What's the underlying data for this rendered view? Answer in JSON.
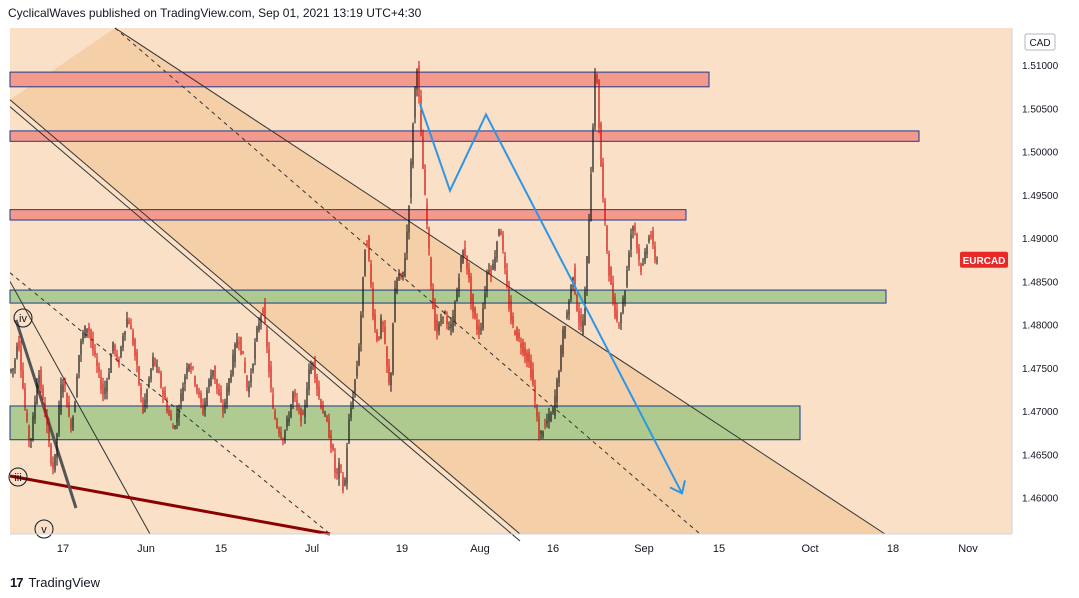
{
  "header": {
    "text": "CyclicalWaves published on TradingView.com, Sep 01, 2021 13:19 UTC+4:30"
  },
  "footer": {
    "logo": "17",
    "brand": "TradingView"
  },
  "colors": {
    "background": "#f9e0c6",
    "band": "#f5cfa8",
    "resistance_fill": "#f49a8c",
    "resistance_stroke": "#1b3a8c",
    "support_fill": "#a7c98c",
    "support_stroke": "#1b3a8c",
    "projection": "#2f95e6",
    "candle_down": "#d40000",
    "candle_up": "#111111",
    "trendline": "#555555",
    "dark_red_line": "#8b0000",
    "price_badge": "#e82929"
  },
  "chart_data": {
    "type": "candlestick",
    "symbol": "EURCAD",
    "currency": "CAD",
    "last_price_label": "EURCAD",
    "y_axis": {
      "ticks": [
        "1.51000",
        "1.50500",
        "1.50000",
        "1.49500",
        "1.49000",
        "1.48500",
        "1.48000",
        "1.47500",
        "1.47000",
        "1.46500",
        "1.46000"
      ],
      "range": [
        1.4558,
        1.5143
      ]
    },
    "x_axis": {
      "labels": [
        "17",
        "Jun",
        "15",
        "Jul",
        "19",
        "Aug",
        "16",
        "Sep",
        "15",
        "Oct",
        "18",
        "Nov"
      ]
    },
    "resistance_zones": [
      {
        "from": 1.5092,
        "to": 1.5075
      },
      {
        "from": 1.5024,
        "to": 1.5012
      },
      {
        "from": 1.4933,
        "to": 1.4921
      }
    ],
    "support_zones": [
      {
        "from": 1.484,
        "to": 1.4825
      },
      {
        "from": 1.4706,
        "to": 1.4667
      }
    ],
    "wave_labels": [
      "iv",
      "iii",
      "v"
    ],
    "price_path": [
      [
        0,
        1.4745
      ],
      [
        6,
        1.475
      ],
      [
        10,
        1.479
      ],
      [
        14,
        1.474
      ],
      [
        18,
        1.469
      ],
      [
        22,
        1.466
      ],
      [
        26,
        1.47
      ],
      [
        30,
        1.475
      ],
      [
        34,
        1.472
      ],
      [
        38,
        1.469
      ],
      [
        42,
        1.465
      ],
      [
        46,
        1.463
      ],
      [
        50,
        1.469
      ],
      [
        54,
        1.474
      ],
      [
        58,
        1.472
      ],
      [
        62,
        1.468
      ],
      [
        66,
        1.47
      ],
      [
        70,
        1.476
      ],
      [
        75,
        1.479
      ],
      [
        80,
        1.48
      ],
      [
        85,
        1.477
      ],
      [
        90,
        1.4745
      ],
      [
        95,
        1.472
      ],
      [
        100,
        1.474
      ],
      [
        105,
        1.478
      ],
      [
        110,
        1.475
      ],
      [
        115,
        1.479
      ],
      [
        120,
        1.481
      ],
      [
        125,
        1.478
      ],
      [
        130,
        1.474
      ],
      [
        135,
        1.47
      ],
      [
        140,
        1.473
      ],
      [
        145,
        1.476
      ],
      [
        150,
        1.4745
      ],
      [
        155,
        1.472
      ],
      [
        160,
        1.47
      ],
      [
        165,
        1.468
      ],
      [
        170,
        1.47
      ],
      [
        175,
        1.473
      ],
      [
        180,
        1.476
      ],
      [
        185,
        1.4745
      ],
      [
        190,
        1.472
      ],
      [
        195,
        1.47
      ],
      [
        200,
        1.473
      ],
      [
        205,
        1.475
      ],
      [
        210,
        1.472
      ],
      [
        215,
        1.47
      ],
      [
        220,
        1.473
      ],
      [
        225,
        1.476
      ],
      [
        230,
        1.479
      ],
      [
        235,
        1.476
      ],
      [
        240,
        1.472
      ],
      [
        245,
        1.476
      ],
      [
        250,
        1.48
      ],
      [
        255,
        1.482
      ],
      [
        260,
        1.476
      ],
      [
        265,
        1.47
      ],
      [
        270,
        1.468
      ],
      [
        275,
        1.467
      ],
      [
        280,
        1.469
      ],
      [
        285,
        1.472
      ],
      [
        290,
        1.47
      ],
      [
        295,
        1.469
      ],
      [
        300,
        1.474
      ],
      [
        305,
        1.476
      ],
      [
        310,
        1.472
      ],
      [
        315,
        1.47
      ],
      [
        320,
        1.468
      ],
      [
        325,
        1.465
      ],
      [
        328,
        1.462
      ],
      [
        332,
        1.464
      ],
      [
        336,
        1.46
      ],
      [
        340,
        1.468
      ],
      [
        345,
        1.472
      ],
      [
        350,
        1.476
      ],
      [
        354,
        1.483
      ],
      [
        358,
        1.491
      ],
      [
        362,
        1.486
      ],
      [
        366,
        1.48
      ],
      [
        370,
        1.478
      ],
      [
        374,
        1.481
      ],
      [
        378,
        1.476
      ],
      [
        382,
        1.472
      ],
      [
        386,
        1.483
      ],
      [
        390,
        1.486
      ],
      [
        394,
        1.485
      ],
      [
        398,
        1.489
      ],
      [
        402,
        1.496
      ],
      [
        406,
        1.506
      ],
      [
        409,
        1.51
      ],
      [
        412,
        1.504
      ],
      [
        416,
        1.496
      ],
      [
        420,
        1.49
      ],
      [
        424,
        1.483
      ],
      [
        428,
        1.479
      ],
      [
        432,
        1.48
      ],
      [
        436,
        1.482
      ],
      [
        440,
        1.479
      ],
      [
        444,
        1.48
      ],
      [
        448,
        1.483
      ],
      [
        452,
        1.487
      ],
      [
        456,
        1.489
      ],
      [
        460,
        1.486
      ],
      [
        464,
        1.482
      ],
      [
        468,
        1.48
      ],
      [
        472,
        1.479
      ],
      [
        476,
        1.483
      ],
      [
        480,
        1.487
      ],
      [
        484,
        1.486
      ],
      [
        488,
        1.489
      ],
      [
        492,
        1.492
      ],
      [
        496,
        1.487
      ],
      [
        500,
        1.483
      ],
      [
        504,
        1.48
      ],
      [
        508,
        1.479
      ],
      [
        512,
        1.478
      ],
      [
        516,
        1.477
      ],
      [
        520,
        1.476
      ],
      [
        524,
        1.474
      ],
      [
        528,
        1.47
      ],
      [
        531,
        1.467
      ],
      [
        535,
        1.468
      ],
      [
        540,
        1.469
      ],
      [
        545,
        1.47
      ],
      [
        550,
        1.474
      ],
      [
        555,
        1.479
      ],
      [
        560,
        1.482
      ],
      [
        565,
        1.486
      ],
      [
        570,
        1.481
      ],
      [
        574,
        1.479
      ],
      [
        578,
        1.485
      ],
      [
        582,
        1.495
      ],
      [
        586,
        1.506
      ],
      [
        588,
        1.511
      ],
      [
        591,
        1.503
      ],
      [
        594,
        1.496
      ],
      [
        598,
        1.49
      ],
      [
        602,
        1.485
      ],
      [
        606,
        1.482
      ],
      [
        610,
        1.48
      ],
      [
        614,
        1.482
      ],
      [
        618,
        1.485
      ],
      [
        622,
        1.49
      ],
      [
        626,
        1.492
      ],
      [
        630,
        1.488
      ],
      [
        634,
        1.486
      ],
      [
        638,
        1.489
      ],
      [
        642,
        1.491
      ],
      [
        646,
        1.488
      ],
      [
        648,
        1.4875
      ]
    ],
    "trendlines": [
      {
        "style": "solid",
        "from": [
          115,
          1.5143
        ],
        "to": [
          885,
          1.4558
        ]
      },
      {
        "style": "dashed",
        "from": [
          115,
          1.5143
        ],
        "to": [
          700,
          1.4558
        ]
      },
      {
        "style": "double",
        "from": [
          10,
          1.506
        ],
        "to": [
          520,
          1.4558
        ]
      },
      {
        "style": "dashed",
        "from": [
          10,
          1.486
        ],
        "to": [
          330,
          1.4558
        ]
      },
      {
        "style": "solid",
        "from": [
          10,
          1.485
        ],
        "to": [
          150,
          1.4558
        ]
      }
    ],
    "projection_path": [
      [
        420,
        1.5055
      ],
      [
        450,
        1.4955
      ],
      [
        486,
        1.5043
      ],
      [
        682,
        1.4605
      ]
    ]
  }
}
